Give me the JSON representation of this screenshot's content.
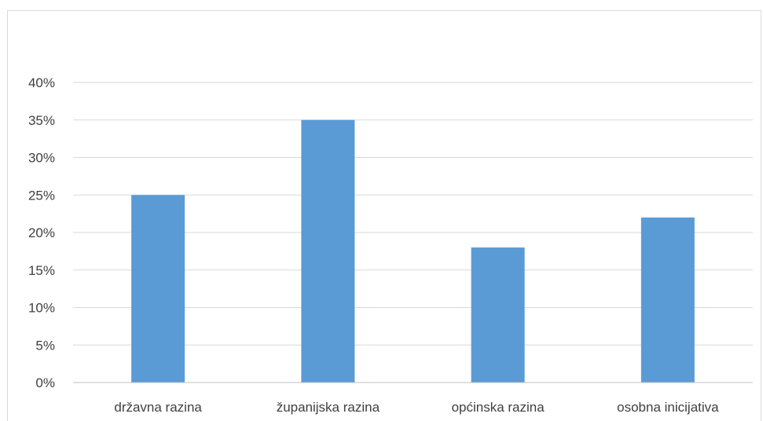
{
  "chart_data": {
    "type": "bar",
    "categories": [
      "državna razina",
      "županijska razina",
      "općinska razina",
      "osobna inicijativa"
    ],
    "values": [
      25,
      35,
      18,
      22
    ],
    "unit": "%",
    "ylim": [
      0,
      40
    ],
    "yticks": [
      "0%",
      "5%",
      "10%",
      "15%",
      "20%",
      "25%",
      "30%",
      "35%",
      "40%"
    ],
    "grid": true,
    "legend": "none",
    "bar_color": "#5b9bd5",
    "grid_color": "#d9d9d9",
    "axis_color": "#bfbfbf",
    "text_color": "#404040"
  }
}
